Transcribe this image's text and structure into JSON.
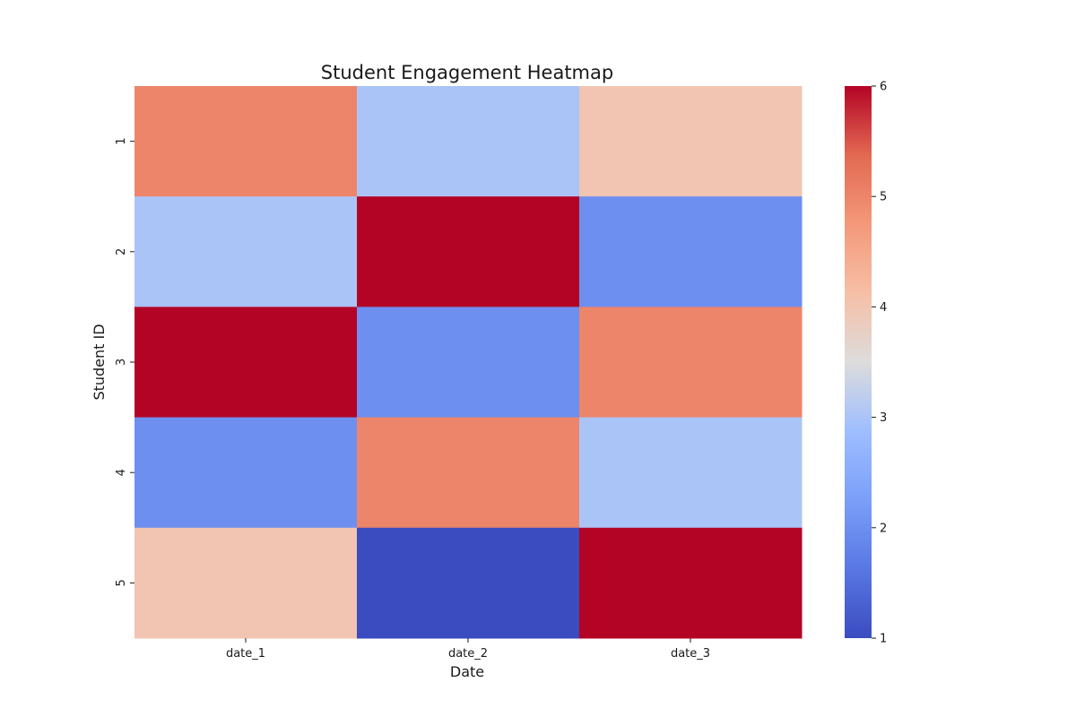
{
  "chart_data": {
    "type": "heatmap",
    "title": "Student Engagement Heatmap",
    "xlabel": "Date",
    "ylabel": "Student ID",
    "x_categories": [
      "date_1",
      "date_2",
      "date_3"
    ],
    "y_categories": [
      "1",
      "2",
      "3",
      "4",
      "5"
    ],
    "values": [
      [
        5,
        3,
        4
      ],
      [
        3,
        6,
        2
      ],
      [
        6,
        2,
        5
      ],
      [
        2,
        5,
        3
      ],
      [
        4,
        1,
        6
      ]
    ],
    "colormap": "coolwarm",
    "colorbar": {
      "min": 1,
      "max": 6,
      "ticks": [
        1,
        2,
        3,
        4,
        5,
        6
      ]
    }
  }
}
